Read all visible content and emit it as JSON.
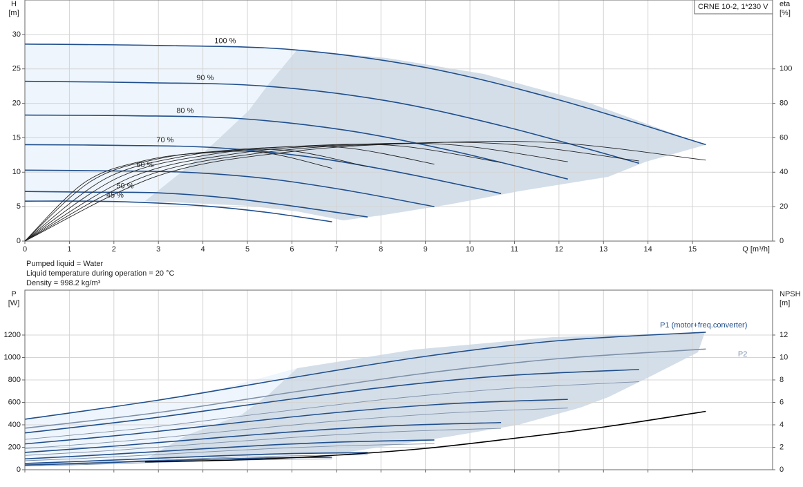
{
  "info": [
    "Pumped liquid = Water",
    "Liquid temperature during operation = 20 °C",
    "Density = 998.2 kg/m³"
  ],
  "chart_data": [
    {
      "type": "line",
      "label_box": "CRNE 10-2, 1*230 V",
      "y_label": "H",
      "y_unit": "[m]",
      "y2_label": "eta",
      "y2_unit": "[%]",
      "x_label": "Q [m³/h]",
      "xlim": [
        0,
        16.8
      ],
      "ylim": [
        0,
        35
      ],
      "y2lim": [
        0,
        140
      ],
      "xticks": [
        0,
        1,
        2,
        3,
        4,
        5,
        6,
        7,
        8,
        9,
        10,
        11,
        12,
        13,
        14,
        15
      ],
      "yticks": [
        0,
        5,
        10,
        15,
        20,
        25,
        30
      ],
      "y2ticks": [
        0,
        20,
        40,
        60,
        80,
        100
      ],
      "grid": true,
      "series": [
        {
          "label": "100 %",
          "color": "#1f4e8c",
          "x": [
            0,
            3,
            6,
            9,
            12,
            15.3
          ],
          "values": [
            28.6,
            28.4,
            27.8,
            25.2,
            20.5,
            14.0
          ]
        },
        {
          "label": "90 %",
          "color": "#1f4e8c",
          "x": [
            0,
            2.7,
            5.4,
            8.1,
            10.8,
            13.8
          ],
          "values": [
            23.2,
            23.0,
            22.5,
            20.4,
            16.6,
            11.3
          ]
        },
        {
          "label": "80 %",
          "color": "#1f4e8c",
          "x": [
            0,
            2.4,
            4.8,
            7.2,
            9.6,
            12.2
          ],
          "values": [
            18.3,
            18.2,
            17.8,
            16.1,
            13.1,
            9.0
          ]
        },
        {
          "label": "70 %",
          "color": "#1f4e8c",
          "x": [
            0,
            2.1,
            4.2,
            6.3,
            8.4,
            10.7
          ],
          "values": [
            14.0,
            13.9,
            13.6,
            12.3,
            10.0,
            6.9
          ]
        },
        {
          "label": "60 %",
          "color": "#1f4e8c",
          "x": [
            0,
            1.8,
            3.6,
            5.4,
            7.2,
            9.2
          ],
          "values": [
            10.3,
            10.2,
            10.0,
            9.1,
            7.4,
            5.0
          ]
        },
        {
          "label": "50 %",
          "color": "#1f4e8c",
          "x": [
            0,
            1.5,
            3,
            4.5,
            6,
            7.7
          ],
          "values": [
            7.2,
            7.1,
            7.0,
            6.3,
            5.1,
            3.5
          ]
        },
        {
          "label": "45 %",
          "color": "#1f4e8c",
          "x": [
            0,
            1.35,
            2.7,
            4.05,
            5.4,
            6.9
          ],
          "values": [
            5.8,
            5.8,
            5.6,
            5.1,
            4.2,
            2.8
          ]
        },
        {
          "axis": "y2",
          "color": "#222222",
          "x": [
            0,
            3,
            6,
            9,
            12,
            15.3
          ],
          "values": [
            0,
            38,
            52,
            57,
            57,
            47
          ]
        },
        {
          "axis": "y2",
          "color": "#222222",
          "x": [
            0,
            2.7,
            5.4,
            8.1,
            10.8,
            13.8
          ],
          "values": [
            0,
            37.6,
            51.5,
            56.4,
            56.4,
            46.5
          ]
        },
        {
          "axis": "y2",
          "color": "#222222",
          "x": [
            0,
            2.4,
            4.8,
            7.2,
            9.6,
            12.2
          ],
          "values": [
            0,
            37.2,
            51,
            55.9,
            55.9,
            46.1
          ]
        },
        {
          "axis": "y2",
          "color": "#222222",
          "x": [
            0,
            2.1,
            4.2,
            6.3,
            8.4,
            10.7
          ],
          "values": [
            0,
            36.9,
            50.4,
            55.3,
            55.3,
            45.6
          ]
        },
        {
          "axis": "y2",
          "color": "#222222",
          "x": [
            0,
            1.8,
            3.6,
            5.4,
            7.2,
            9.2
          ],
          "values": [
            0,
            36.1,
            49.4,
            54.2,
            54.2,
            44.7
          ]
        },
        {
          "axis": "y2",
          "color": "#222222",
          "x": [
            0,
            1.5,
            3,
            4.5,
            6,
            7.7
          ],
          "values": [
            0,
            35,
            47.8,
            52.4,
            52.4,
            43.2
          ]
        },
        {
          "axis": "y2",
          "color": "#222222",
          "x": [
            0,
            1.35,
            2.7,
            4.05,
            5.4,
            6.9
          ],
          "values": [
            0,
            34.2,
            46.8,
            51.3,
            51.3,
            42.3
          ]
        }
      ]
    },
    {
      "type": "line",
      "y_label": "P",
      "y_unit": "[W]",
      "y2_label": "NPSH",
      "y2_unit": "[m]",
      "xlim": [
        0,
        16.8
      ],
      "ylim": [
        0,
        1600
      ],
      "y2lim": [
        0,
        16
      ],
      "xticks": [
        0,
        1,
        2,
        3,
        4,
        5,
        6,
        7,
        8,
        9,
        10,
        11,
        12,
        13,
        14,
        15
      ],
      "yticks": [
        0,
        200,
        400,
        600,
        800,
        1000,
        1200
      ],
      "y2ticks": [
        0,
        2,
        4,
        6,
        8,
        10,
        12
      ],
      "grid": true,
      "series": [
        {
          "name": "P1 (motor+freq.converter)",
          "color": "#1f4e8c",
          "x": [
            0,
            3,
            6,
            9,
            12,
            15.3
          ],
          "values": [
            450,
            620,
            820,
            1010,
            1150,
            1225
          ]
        },
        {
          "name": "P2",
          "color": "#7d8fa8",
          "x": [
            0,
            3,
            6,
            9,
            12,
            15.3
          ],
          "values": [
            370,
            510,
            690,
            860,
            990,
            1075
          ]
        },
        {
          "color": "#1f4e8c",
          "x": [
            0,
            2.7,
            5.4,
            8.1,
            10.8,
            13.8
          ],
          "values": [
            328,
            452,
            598,
            736,
            838,
            893
          ]
        },
        {
          "color": "#7d8fa8",
          "x": [
            0,
            2.7,
            5.4,
            8.1,
            10.8,
            13.8
          ],
          "values": [
            270,
            372,
            503,
            627,
            722,
            784
          ]
        },
        {
          "color": "#1f4e8c",
          "x": [
            0,
            2.4,
            4.8,
            7.2,
            9.6,
            12.2
          ],
          "values": [
            230,
            317,
            420,
            517,
            589,
            627
          ]
        },
        {
          "color": "#7d8fa8",
          "x": [
            0,
            2.4,
            4.8,
            7.2,
            9.6,
            12.2
          ],
          "values": [
            189,
            261,
            353,
            440,
            507,
            550
          ]
        },
        {
          "color": "#1f4e8c",
          "x": [
            0,
            2.1,
            4.2,
            6.3,
            8.4,
            10.7
          ],
          "values": [
            154,
            213,
            281,
            346,
            394,
            420
          ]
        },
        {
          "color": "#7d8fa8",
          "x": [
            0,
            2.1,
            4.2,
            6.3,
            8.4,
            10.7
          ],
          "values": [
            127,
            175,
            237,
            295,
            340,
            369
          ]
        },
        {
          "color": "#1f4e8c",
          "x": [
            0,
            1.8,
            3.6,
            5.4,
            7.2,
            9.2
          ],
          "values": [
            97,
            134,
            177,
            218,
            248,
            265
          ]
        },
        {
          "color": "#7d8fa8",
          "x": [
            0,
            1.8,
            3.6,
            5.4,
            7.2,
            9.2
          ],
          "values": [
            80,
            110,
            149,
            186,
            214,
            232
          ]
        },
        {
          "color": "#1f4e8c",
          "x": [
            0,
            1.5,
            3,
            4.5,
            6,
            7.7
          ],
          "values": [
            56,
            78,
            103,
            126,
            144,
            153
          ]
        },
        {
          "color": "#7d8fa8",
          "x": [
            0,
            1.5,
            3,
            4.5,
            6,
            7.7
          ],
          "values": [
            46,
            64,
            86,
            108,
            124,
            134
          ]
        },
        {
          "color": "#1f4e8c",
          "x": [
            0,
            1.35,
            2.7,
            4.05,
            5.4,
            6.9
          ],
          "values": [
            41,
            56,
            75,
            92,
            105,
            111
          ]
        },
        {
          "color": "#7d8fa8",
          "x": [
            0,
            1.35,
            2.7,
            4.05,
            5.4,
            6.9
          ],
          "values": [
            34,
            46,
            63,
            78,
            90,
            98
          ]
        },
        {
          "axis": "y2",
          "color": "#000000",
          "x": [
            2.7,
            5,
            7,
            9,
            11,
            13,
            15.3
          ],
          "values": [
            0.7,
            0.9,
            1.3,
            1.9,
            2.8,
            3.8,
            5.2
          ]
        }
      ]
    }
  ]
}
